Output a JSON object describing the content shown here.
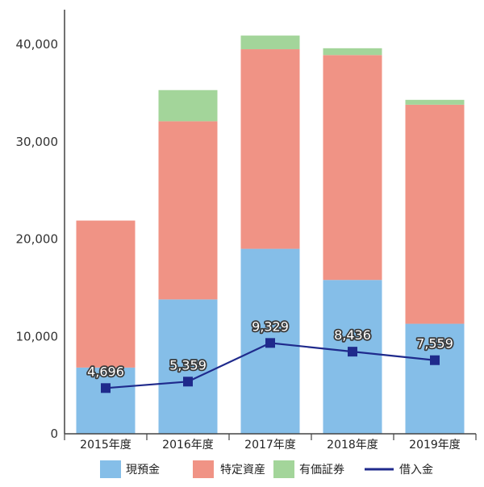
{
  "chart_data": {
    "type": "bar",
    "stacked": true,
    "categories": [
      "2015年度",
      "2016年度",
      "2017年度",
      "2018年度",
      "2019年度"
    ],
    "ylim": [
      0,
      45000
    ],
    "yticks": [
      0,
      10000,
      20000,
      30000,
      40000
    ],
    "ytick_labels": [
      "0",
      "10,000",
      "20,000",
      "30,000",
      "40,000"
    ],
    "series": [
      {
        "name": "現預金",
        "kind": "bar",
        "color": "#85BEE8",
        "values": [
          6800,
          13800,
          19000,
          15800,
          11300
        ]
      },
      {
        "name": "特定資産",
        "kind": "bar",
        "color": "#F09385",
        "values": [
          15100,
          18300,
          20500,
          23100,
          22500
        ]
      },
      {
        "name": "有価証券",
        "kind": "bar",
        "color": "#A3D59A",
        "values": [
          0,
          3200,
          1400,
          700,
          500
        ]
      },
      {
        "name": "借入金",
        "kind": "line",
        "color": "#1F2A8C",
        "values": [
          4696,
          5359,
          9329,
          8436,
          7559
        ]
      }
    ],
    "data_labels": [
      "4,696",
      "5,359",
      "9,329",
      "8,436",
      "7,559"
    ],
    "legend_position": "bottom",
    "grid": false
  }
}
